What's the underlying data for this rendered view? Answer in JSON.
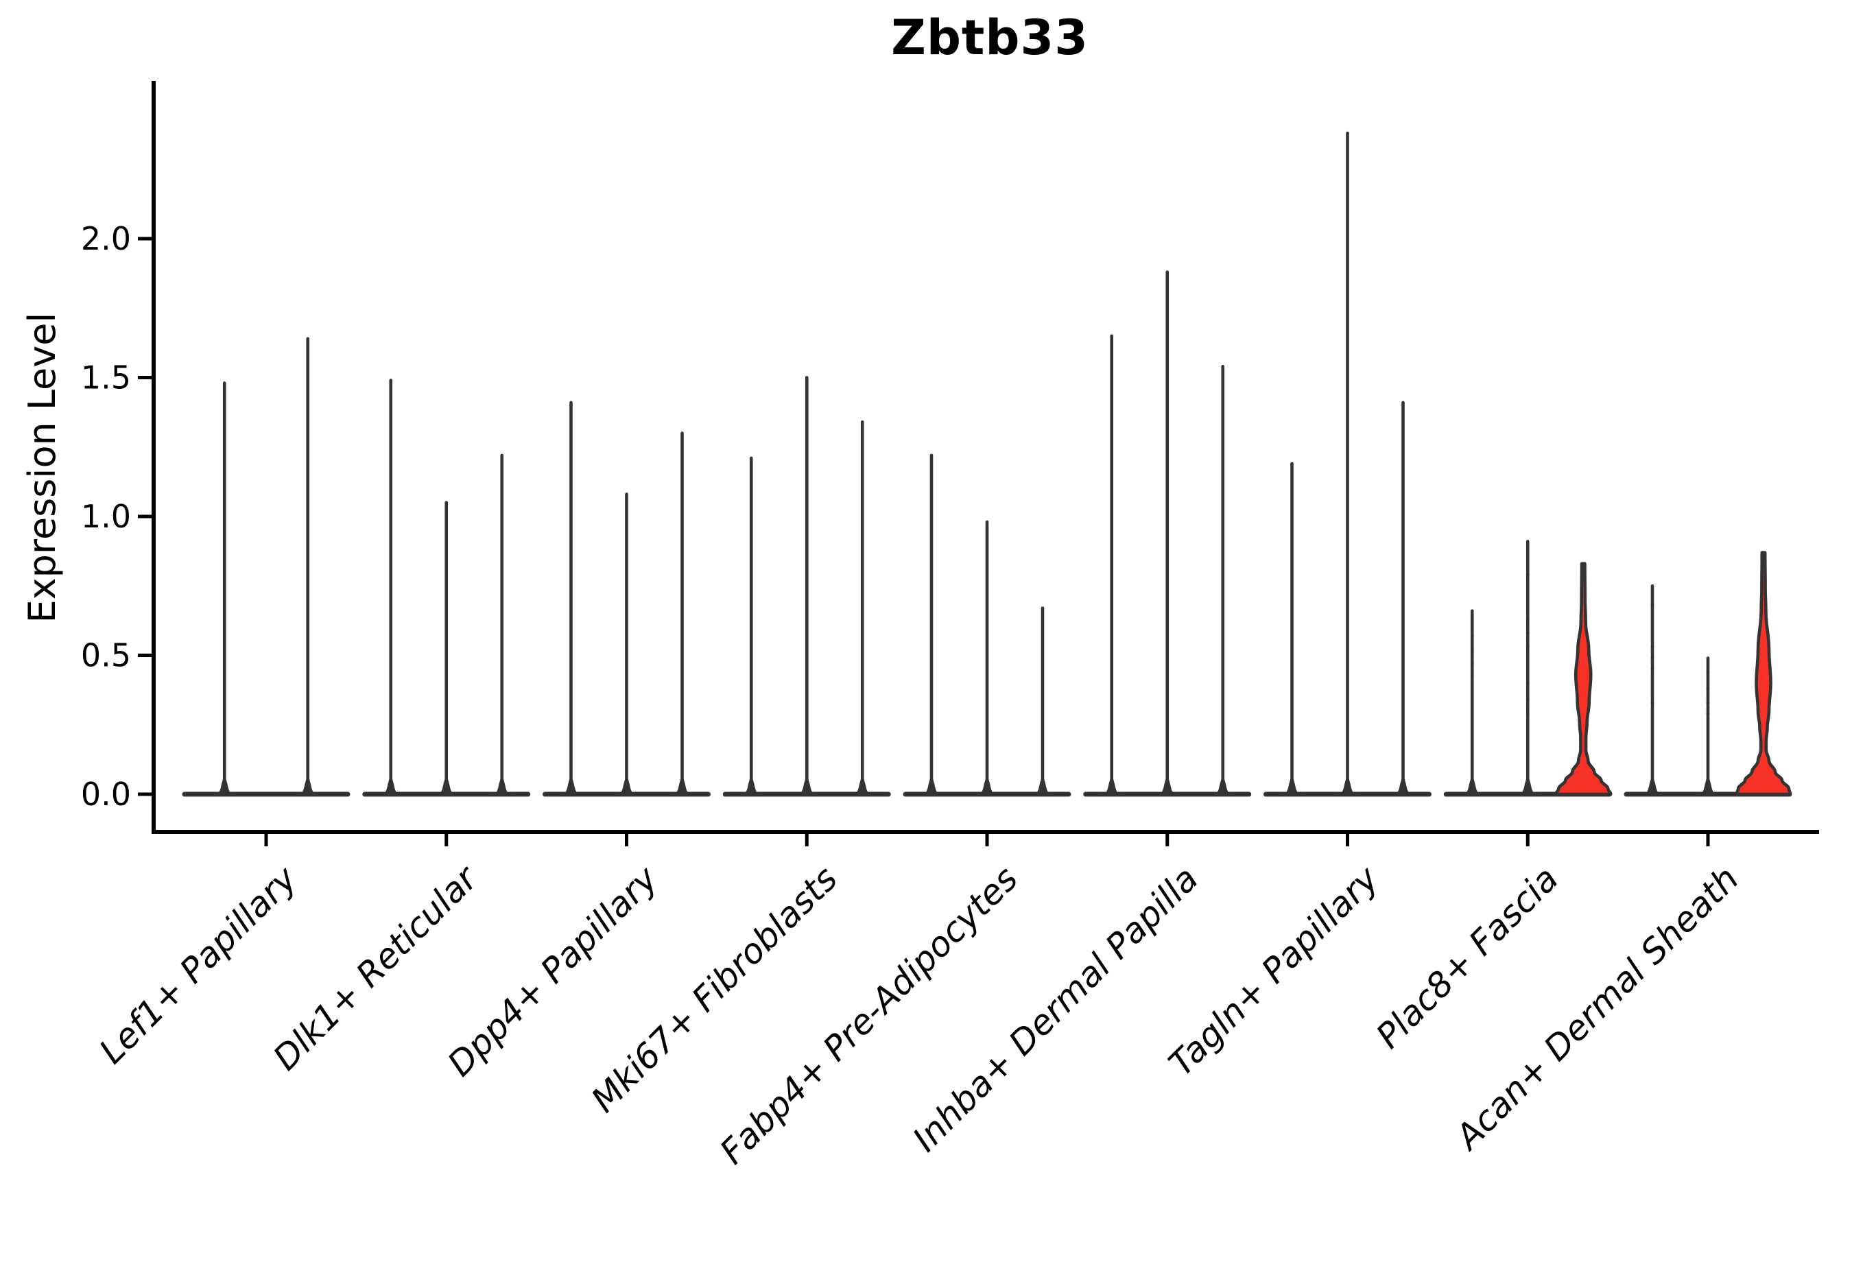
{
  "title": "Zbtb33",
  "y_axis": {
    "label": "Expression Level",
    "ticks": [
      "0.0",
      "0.5",
      "1.0",
      "1.5",
      "2.0"
    ],
    "tick_values": [
      0.0,
      0.5,
      1.0,
      1.5,
      2.0
    ]
  },
  "colors": {
    "violin_stroke": "#333333",
    "red_fill": "#f83127",
    "axis": "#000000",
    "dot": "#2f2f2f",
    "background": "#ffffff"
  },
  "chart_data": {
    "type": "violin",
    "title": "Zbtb33",
    "xlabel": "",
    "ylabel": "Expression Level",
    "ylim": [
      0,
      2.55
    ],
    "yticks": [
      0.0,
      0.5,
      1.0,
      1.5,
      2.0
    ],
    "grid": false,
    "legend": false,
    "x_categories": [
      "Lef1+ Papillary",
      "Dlk1+ Reticular",
      "Dpp4+ Papillary",
      "Mki67+ Fibroblasts",
      "Fabp4+ Pre-Adipocytes",
      "Inhba+ Dermal Papilla",
      "Tagln+ Papillary",
      "Plac8+ Fascia",
      "Acan+ Dermal Sheath"
    ],
    "groups": [
      {
        "label": "Lef1+ Papillary",
        "violins": [
          {
            "max": 1.48
          },
          {
            "max": 1.64
          }
        ]
      },
      {
        "label": "Dlk1+ Reticular",
        "violins": [
          {
            "max": 1.49
          },
          {
            "max": 1.05
          },
          {
            "max": 1.22
          }
        ]
      },
      {
        "label": "Dpp4+ Papillary",
        "violins": [
          {
            "max": 1.41
          },
          {
            "max": 1.08
          },
          {
            "max": 1.3
          }
        ]
      },
      {
        "label": "Mki67+ Fibroblasts",
        "violins": [
          {
            "max": 1.21
          },
          {
            "max": 1.5
          },
          {
            "max": 1.34
          }
        ]
      },
      {
        "label": "Fabp4+ Pre-Adipocytes",
        "violins": [
          {
            "max": 1.22
          },
          {
            "max": 0.98
          },
          {
            "max": 0.67
          }
        ]
      },
      {
        "label": "Inhba+ Dermal Papilla",
        "violins": [
          {
            "max": 1.65
          },
          {
            "max": 1.88
          },
          {
            "max": 1.54
          }
        ]
      },
      {
        "label": "Tagln+ Papillary",
        "violins": [
          {
            "max": 1.19
          },
          {
            "max": 2.38
          },
          {
            "max": 1.41
          }
        ]
      },
      {
        "label": "Plac8+ Fascia",
        "violins": [
          {
            "max": 0.66,
            "dots": [
              0.57,
              0.52,
              0.47,
              0.43
            ]
          },
          {
            "max": 0.91,
            "dots": [
              0.79,
              0.63,
              0.58,
              0.53,
              0.4,
              0.34,
              0.29
            ]
          },
          {
            "max": 0.83,
            "filled": true,
            "profile": [
              [
                0.83,
                2.2
              ],
              [
                0.7,
                2.6
              ],
              [
                0.62,
                3.4
              ],
              [
                0.52,
                8
              ],
              [
                0.43,
                11
              ],
              [
                0.33,
                8.5
              ],
              [
                0.26,
                5.5
              ],
              [
                0.2,
                3.8
              ],
              [
                0.16,
                3.8
              ],
              [
                0.12,
                7
              ],
              [
                0.08,
                16
              ],
              [
                0.05,
                26
              ],
              [
                0.02,
                36
              ],
              [
                0.0,
                40
              ]
            ]
          }
        ]
      },
      {
        "label": "Acan+ Dermal Sheath",
        "violins": [
          {
            "max": 0.75,
            "dots": [
              0.68,
              0.53,
              0.49,
              0.45,
              0.33
            ]
          },
          {
            "max": 0.49,
            "dots": [
              0.44,
              0.38,
              0.33,
              0.29
            ]
          },
          {
            "max": 0.87,
            "filled": true,
            "profile": [
              [
                0.87,
                2.2
              ],
              [
                0.74,
                2.6
              ],
              [
                0.66,
                3.4
              ],
              [
                0.52,
                8
              ],
              [
                0.4,
                10.5
              ],
              [
                0.3,
                8
              ],
              [
                0.24,
                5.5
              ],
              [
                0.19,
                3.8
              ],
              [
                0.16,
                3.8
              ],
              [
                0.12,
                8
              ],
              [
                0.08,
                17
              ],
              [
                0.05,
                27
              ],
              [
                0.02,
                37
              ],
              [
                0.0,
                39
              ]
            ]
          }
        ]
      }
    ]
  }
}
